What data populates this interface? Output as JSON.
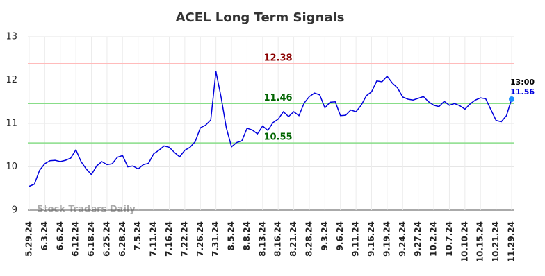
{
  "chart_data": {
    "type": "line",
    "title": "ACEL Long Term Signals",
    "watermark": "Stock Traders Daily",
    "categories": [
      "5.29.24",
      null,
      null,
      "6.3.24",
      null,
      null,
      "6.6.24",
      null,
      null,
      "6.12.24",
      null,
      null,
      "6.18.24",
      null,
      null,
      "6.25.24",
      null,
      null,
      "6.28.24",
      null,
      null,
      "7.5.24",
      null,
      null,
      "7.11.24",
      null,
      null,
      "7.16.24",
      null,
      null,
      "7.22.24",
      null,
      null,
      "7.26.24",
      null,
      null,
      "7.31.24",
      null,
      null,
      "8.5.24",
      null,
      null,
      "8.8.24",
      null,
      null,
      "8.13.24",
      null,
      null,
      "8.16.24",
      null,
      null,
      "8.21.24",
      null,
      null,
      "8.28.24",
      null,
      null,
      "9.3.24",
      null,
      null,
      "9.6.24",
      null,
      null,
      "9.11.24",
      null,
      null,
      "9.16.24",
      null,
      null,
      "9.19.24",
      null,
      null,
      "9.24.24",
      null,
      null,
      "9.27.24",
      null,
      null,
      "10.2.24",
      null,
      null,
      "10.7.24",
      null,
      null,
      "10.10.24",
      null,
      null,
      "10.15.24",
      null,
      null,
      "10.21.24",
      null,
      null,
      "11.29.24"
    ],
    "series": [
      {
        "name": "ACEL",
        "color": "#0000dd",
        "values": [
          9.55,
          9.6,
          9.92,
          10.07,
          10.14,
          10.15,
          10.12,
          10.15,
          10.2,
          10.39,
          10.12,
          9.95,
          9.82,
          10.02,
          10.12,
          10.05,
          10.07,
          10.22,
          10.26,
          10.0,
          10.02,
          9.95,
          10.05,
          10.08,
          10.3,
          10.38,
          10.48,
          10.45,
          10.33,
          10.23,
          10.38,
          10.45,
          10.58,
          10.9,
          10.96,
          11.08,
          12.2,
          11.6,
          10.9,
          10.46,
          10.56,
          10.6,
          10.89,
          10.85,
          10.76,
          10.94,
          10.84,
          11.02,
          11.1,
          11.27,
          11.16,
          11.27,
          11.18,
          11.47,
          11.62,
          11.7,
          11.66,
          11.36,
          11.49,
          11.5,
          11.18,
          11.19,
          11.31,
          11.27,
          11.42,
          11.64,
          11.73,
          11.98,
          11.96,
          12.09,
          11.93,
          11.82,
          11.61,
          11.56,
          11.54,
          11.58,
          11.62,
          11.5,
          11.42,
          11.39,
          11.51,
          11.42,
          11.46,
          11.41,
          11.33,
          11.45,
          11.54,
          11.59,
          11.57,
          11.32,
          11.07,
          11.04,
          11.18,
          11.56
        ]
      }
    ],
    "last_point_label": "13:00",
    "hlines": [
      {
        "value": 12.38,
        "color": "#ffbbbb",
        "label_color": "#8b0000"
      },
      {
        "value": 11.46,
        "color": "#88dd88",
        "label_color": "#006400"
      },
      {
        "value": 10.55,
        "color": "#88dd88",
        "label_color": "#006400"
      }
    ],
    "ylim": [
      9,
      13
    ],
    "yticks": [
      9,
      10,
      11,
      12,
      13
    ],
    "grid": true
  }
}
